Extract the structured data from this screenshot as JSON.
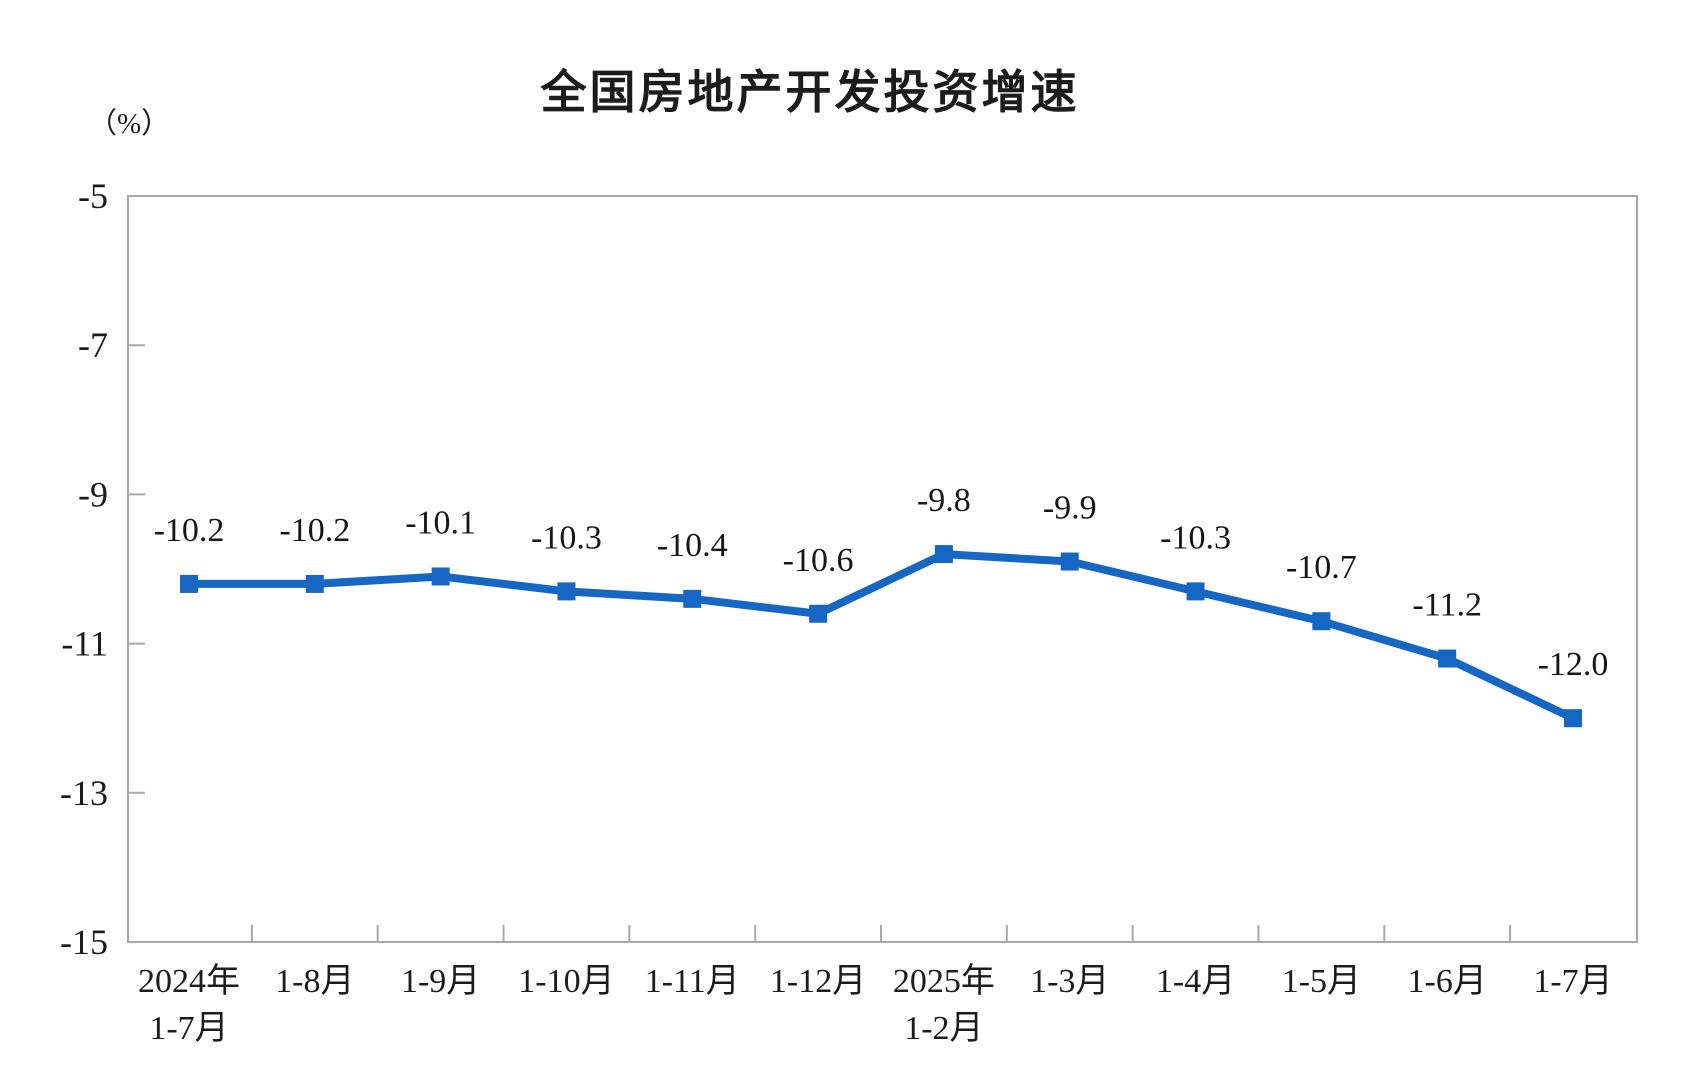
{
  "page": {
    "background": "#ffffff"
  },
  "chart_data": {
    "type": "line",
    "title": "全国房地产开发投资增速",
    "unit_label": "（%）",
    "categories": [
      [
        "2024年",
        "1-7月"
      ],
      [
        "1-8月"
      ],
      [
        "1-9月"
      ],
      [
        "1-10月"
      ],
      [
        "1-11月"
      ],
      [
        "1-12月"
      ],
      [
        "2025年",
        "1-2月"
      ],
      [
        "1-3月"
      ],
      [
        "1-4月"
      ],
      [
        "1-5月"
      ],
      [
        "1-6月"
      ],
      [
        "1-7月"
      ]
    ],
    "values": [
      -10.2,
      -10.2,
      -10.1,
      -10.3,
      -10.4,
      -10.6,
      -9.8,
      -9.9,
      -10.3,
      -10.7,
      -11.2,
      -12.0
    ],
    "labels": [
      "-10.2",
      "-10.2",
      "-10.1",
      "-10.3",
      "-10.4",
      "-10.6",
      "-9.8",
      "-9.9",
      "-10.3",
      "-10.7",
      "-11.2",
      "-12.0"
    ],
    "y_ticks": [
      -5,
      -7,
      -9,
      -11,
      -13,
      -15
    ],
    "y_tick_labels": [
      "-5",
      "-7",
      "-9",
      "-11",
      "-13",
      "-15"
    ],
    "ylim": [
      -15,
      -5
    ],
    "grid": false,
    "legend": null,
    "marker": "square",
    "line_color": "#1666c4",
    "axis_color": "#a8a8a8",
    "text_color": "#1c1c1c"
  }
}
